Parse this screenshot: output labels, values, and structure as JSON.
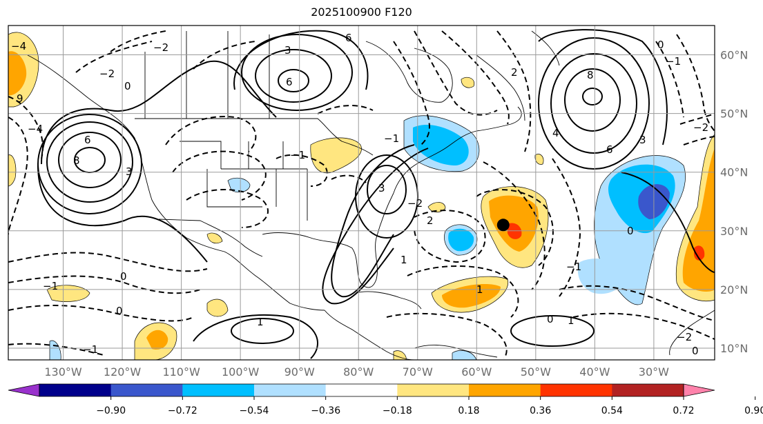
{
  "title": "2025100900 F120",
  "map": {
    "lon_labels": [
      "130°W",
      "120°W",
      "110°W",
      "100°W",
      "90°W",
      "80°W",
      "70°W",
      "60°W",
      "50°W",
      "40°W",
      "30°W"
    ],
    "lat_labels": [
      "60°N",
      "50°N",
      "40°N",
      "30°N",
      "20°N",
      "10°N"
    ],
    "lon_values": [
      -130,
      -120,
      -110,
      -100,
      -90,
      -80,
      -70,
      -60,
      -50,
      -40,
      -30
    ],
    "lat_values": [
      60,
      50,
      40,
      30,
      20,
      10
    ],
    "lon_range": [
      -139.3,
      -19.7
    ],
    "lat_range": [
      8,
      65
    ],
    "storm_marker": {
      "lon": -55.5,
      "lat": 31
    }
  },
  "colorbar": {
    "ticks": [
      "−0.90",
      "−0.72",
      "−0.54",
      "−0.36",
      "−0.18",
      "0.18",
      "0.36",
      "0.54",
      "0.72",
      "0.90"
    ],
    "colors": [
      "#9932cc",
      "#00008b",
      "#3a57cc",
      "#00bfff",
      "#b0e0ff",
      "#ffffff",
      "#ffe680",
      "#ffa500",
      "#ff3300",
      "#b22222",
      "#ff82ab"
    ],
    "extend": "both"
  },
  "contour_labels": [
    "9",
    "6",
    "3",
    "0",
    "−1",
    "−2",
    "−4",
    "8",
    "6",
    "3",
    "0",
    "1",
    "−1",
    "−2",
    "3",
    "8",
    "6",
    "4",
    "3",
    "0",
    "−1",
    "−2",
    "1",
    "0",
    "2",
    "−1",
    "2",
    "1",
    "0",
    "−2",
    "1",
    "0",
    "−4",
    "6",
    "−2",
    "−1",
    "−1",
    "0"
  ]
}
